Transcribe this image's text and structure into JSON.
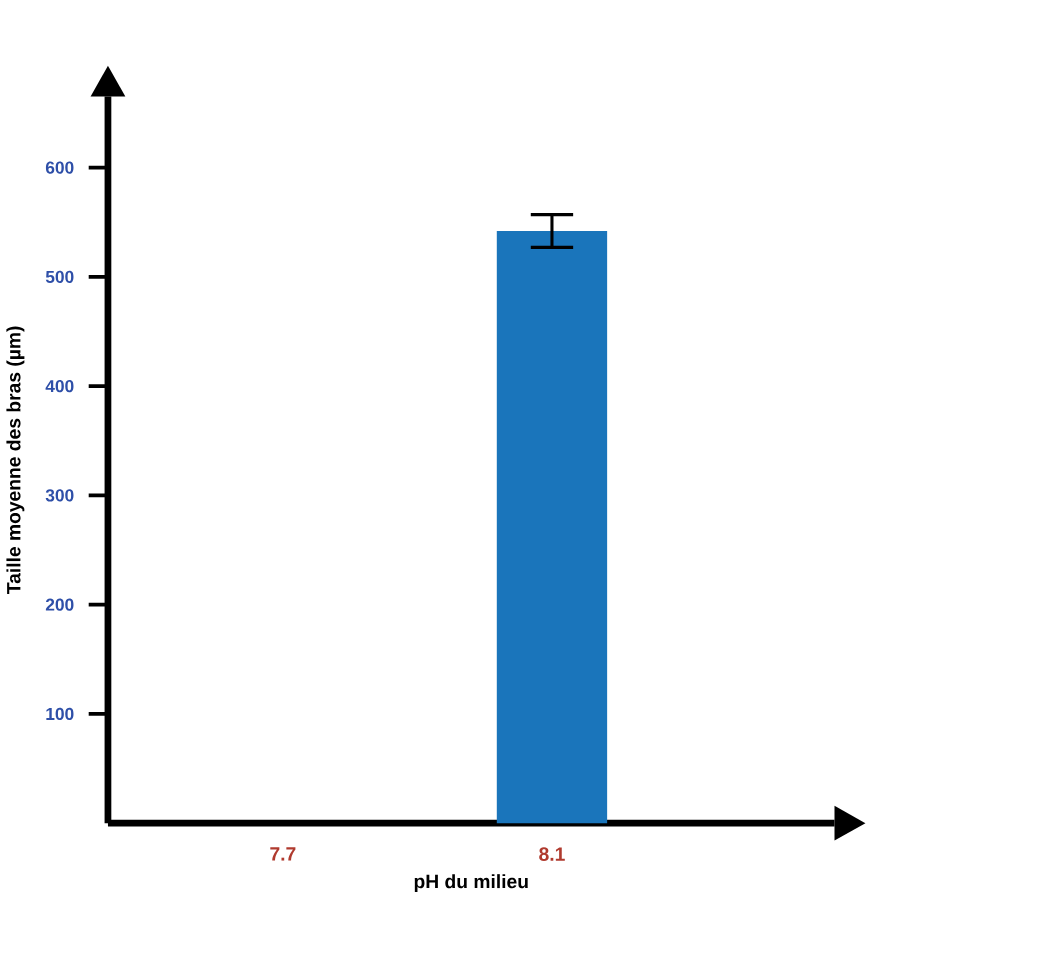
{
  "chart_data": {
    "type": "bar",
    "xlabel": "pH du milieu",
    "ylabel": "Taille moyenne des bras (µm)",
    "categories": [
      "7.7",
      "8.1"
    ],
    "values": [
      null,
      542
    ],
    "errors": [
      null,
      15
    ],
    "color": "#1a75bb",
    "ylim": [
      0,
      665
    ],
    "yticks": [
      100,
      200,
      300,
      400,
      500,
      600
    ]
  }
}
